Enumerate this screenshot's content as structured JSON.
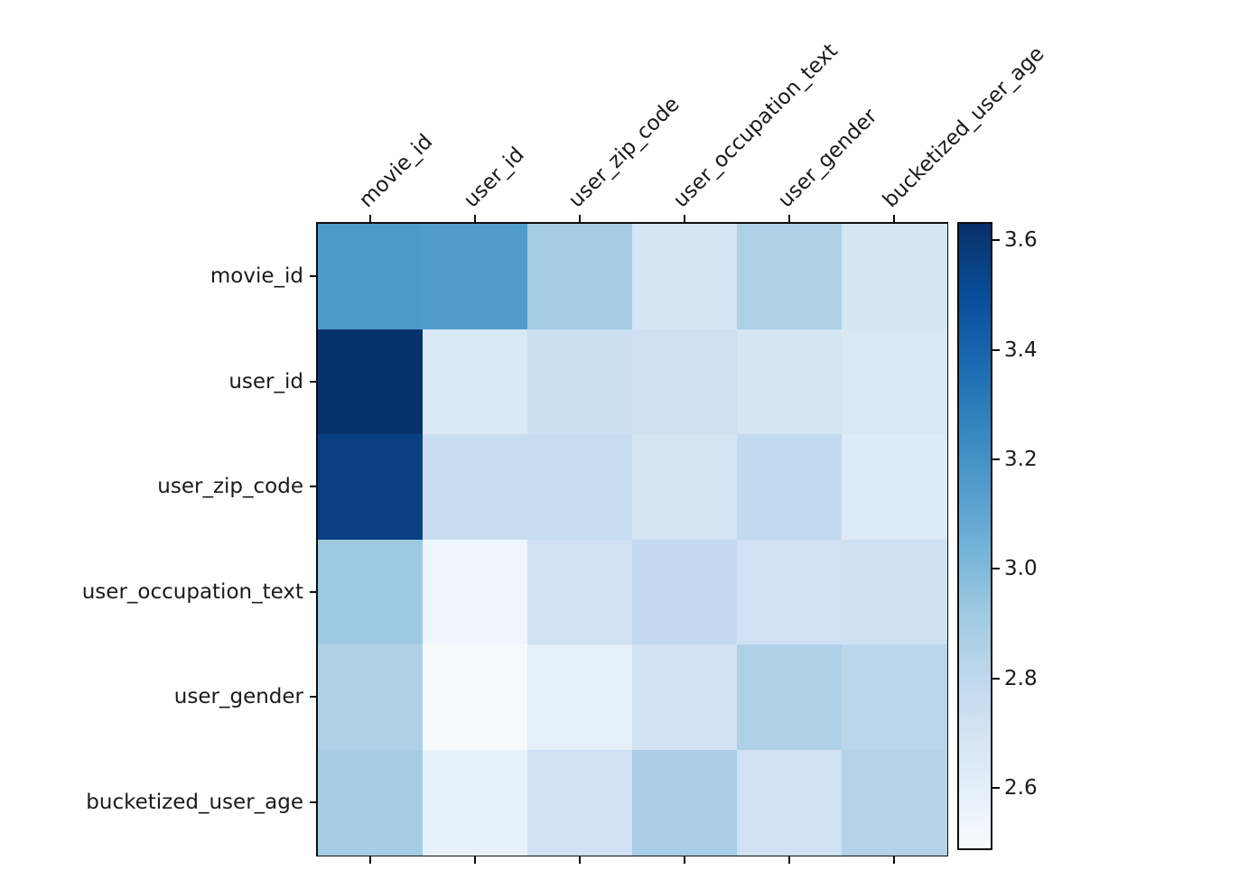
{
  "chart_data": {
    "type": "heatmap",
    "title": "",
    "xlabel": "",
    "ylabel": "",
    "row_labels": [
      "movie_id",
      "user_id",
      "user_zip_code",
      "user_occupation_text",
      "user_gender",
      "bucketized_user_age"
    ],
    "col_labels": [
      "movie_id",
      "user_id",
      "user_zip_code",
      "user_occupation_text",
      "user_gender",
      "bucketized_user_age"
    ],
    "values": [
      [
        3.16,
        3.15,
        2.89,
        2.69,
        2.86,
        2.69
      ],
      [
        3.62,
        2.65,
        2.74,
        2.73,
        2.69,
        2.66
      ],
      [
        3.56,
        2.76,
        2.77,
        2.69,
        2.79,
        2.64
      ],
      [
        2.92,
        2.54,
        2.72,
        2.78,
        2.72,
        2.73
      ],
      [
        2.86,
        2.5,
        2.6,
        2.7,
        2.86,
        2.82
      ],
      [
        2.89,
        2.58,
        2.72,
        2.88,
        2.72,
        2.84
      ]
    ],
    "colorbar": {
      "vmin": 2.49,
      "vmax": 3.63,
      "ticks": [
        2.6,
        2.8,
        3.0,
        3.2,
        3.4,
        3.6
      ],
      "tick_labels": [
        "2.6",
        "2.8",
        "3.0",
        "3.2",
        "3.4",
        "3.6"
      ],
      "position": "right"
    },
    "colormap": {
      "name": "Blues",
      "stops": [
        {
          "t": 0.0,
          "color": "#f7fbff"
        },
        {
          "t": 0.125,
          "color": "#deebf7"
        },
        {
          "t": 0.25,
          "color": "#c6dbef"
        },
        {
          "t": 0.375,
          "color": "#9ecae1"
        },
        {
          "t": 0.5,
          "color": "#6baed6"
        },
        {
          "t": 0.625,
          "color": "#4292c6"
        },
        {
          "t": 0.75,
          "color": "#2171b5"
        },
        {
          "t": 0.875,
          "color": "#08519c"
        },
        {
          "t": 1.0,
          "color": "#08306b"
        }
      ]
    },
    "layout": {
      "grid": "off",
      "x_axis_labels_position": "top",
      "x_axis_label_rotation_deg": 45,
      "spine_color": "#0d0d0d",
      "background_color": "#ffffff"
    }
  }
}
